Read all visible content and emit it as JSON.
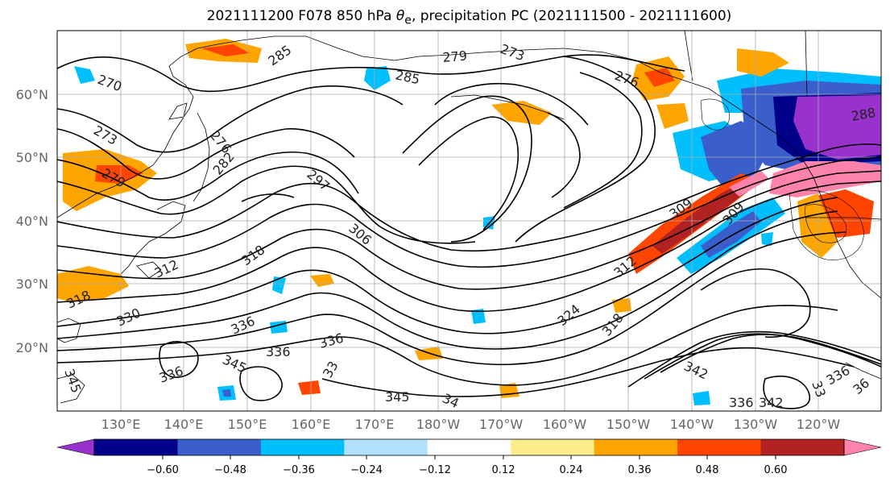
{
  "title": {
    "prefix": "2021111200 F078 850 hPa ",
    "theta": "θ",
    "theta_sub": "e",
    "suffix": ", precipitation PC (2021111500 - 2021111600)"
  },
  "lat_labels": [
    "60°N",
    "50°N",
    "40°N",
    "30°N",
    "20°N"
  ],
  "lon_labels": [
    "130°E",
    "140°E",
    "150°E",
    "160°E",
    "170°E",
    "180°W",
    "170°W",
    "160°W",
    "150°W",
    "140°W",
    "130°W",
    "120°W"
  ],
  "colorbar": {
    "colors": [
      "#9932cc",
      "#00008b",
      "#3a5fcd",
      "#00bfff",
      "#b0e2ff",
      "#ffffff",
      "#ffec8b",
      "#ffa500",
      "#ff4500",
      "#b22222",
      "#ff82ab"
    ],
    "tick_labels": [
      "−0.60",
      "−0.48",
      "−0.36",
      "−0.24",
      "−0.12",
      "0.12",
      "0.24",
      "0.36",
      "0.48",
      "0.60"
    ]
  },
  "contour_labels": [
    "270",
    "273",
    "279",
    "276",
    "282",
    "285",
    "285",
    "273",
    "279",
    "276",
    "297",
    "306",
    "318",
    "312",
    "330",
    "318",
    "336",
    "336",
    "345",
    "336",
    "345",
    "336",
    "33",
    "345",
    "34",
    "324",
    "312",
    "318",
    "342",
    "336",
    "342",
    "336",
    "33",
    "36",
    "309",
    "309",
    "288"
  ]
}
